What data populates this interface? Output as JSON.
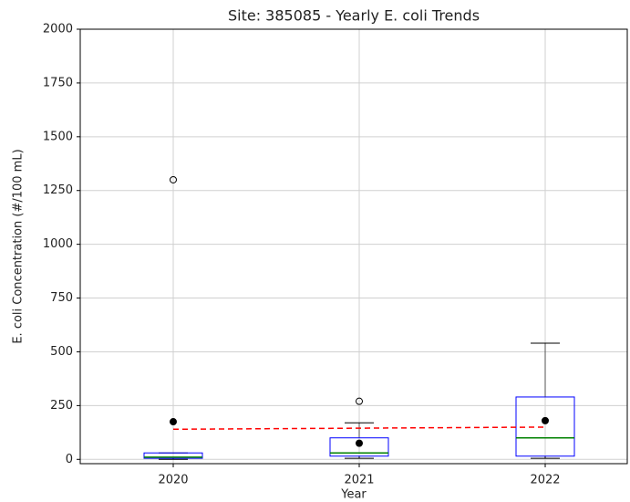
{
  "chart_data": {
    "type": "box",
    "title": "Site: 385085 - Yearly E. coli Trends",
    "xlabel": "Year",
    "ylabel": "E. coli Concentration (#/100 mL)",
    "categories": [
      "2020",
      "2021",
      "2022"
    ],
    "whisker_low": [
      0,
      5,
      5
    ],
    "q1": [
      5,
      15,
      15
    ],
    "median": [
      10,
      30,
      100
    ],
    "q3": [
      30,
      100,
      290
    ],
    "whisker_high": [
      30,
      170,
      540
    ],
    "outliers": [
      [
        1300
      ],
      [
        270
      ],
      []
    ],
    "means": [
      175,
      75,
      180
    ],
    "trend": [
      140,
      145,
      150
    ],
    "box_color": "#0000ff",
    "median_color": "#008000",
    "whisker_color": "#000000",
    "mean_color": "#000000",
    "trend_color": "#ff0000",
    "ylim": [
      -20,
      2000
    ],
    "yticks": [
      0,
      250,
      500,
      750,
      1000,
      1250,
      1500,
      1750,
      2000
    ],
    "grid": true
  }
}
